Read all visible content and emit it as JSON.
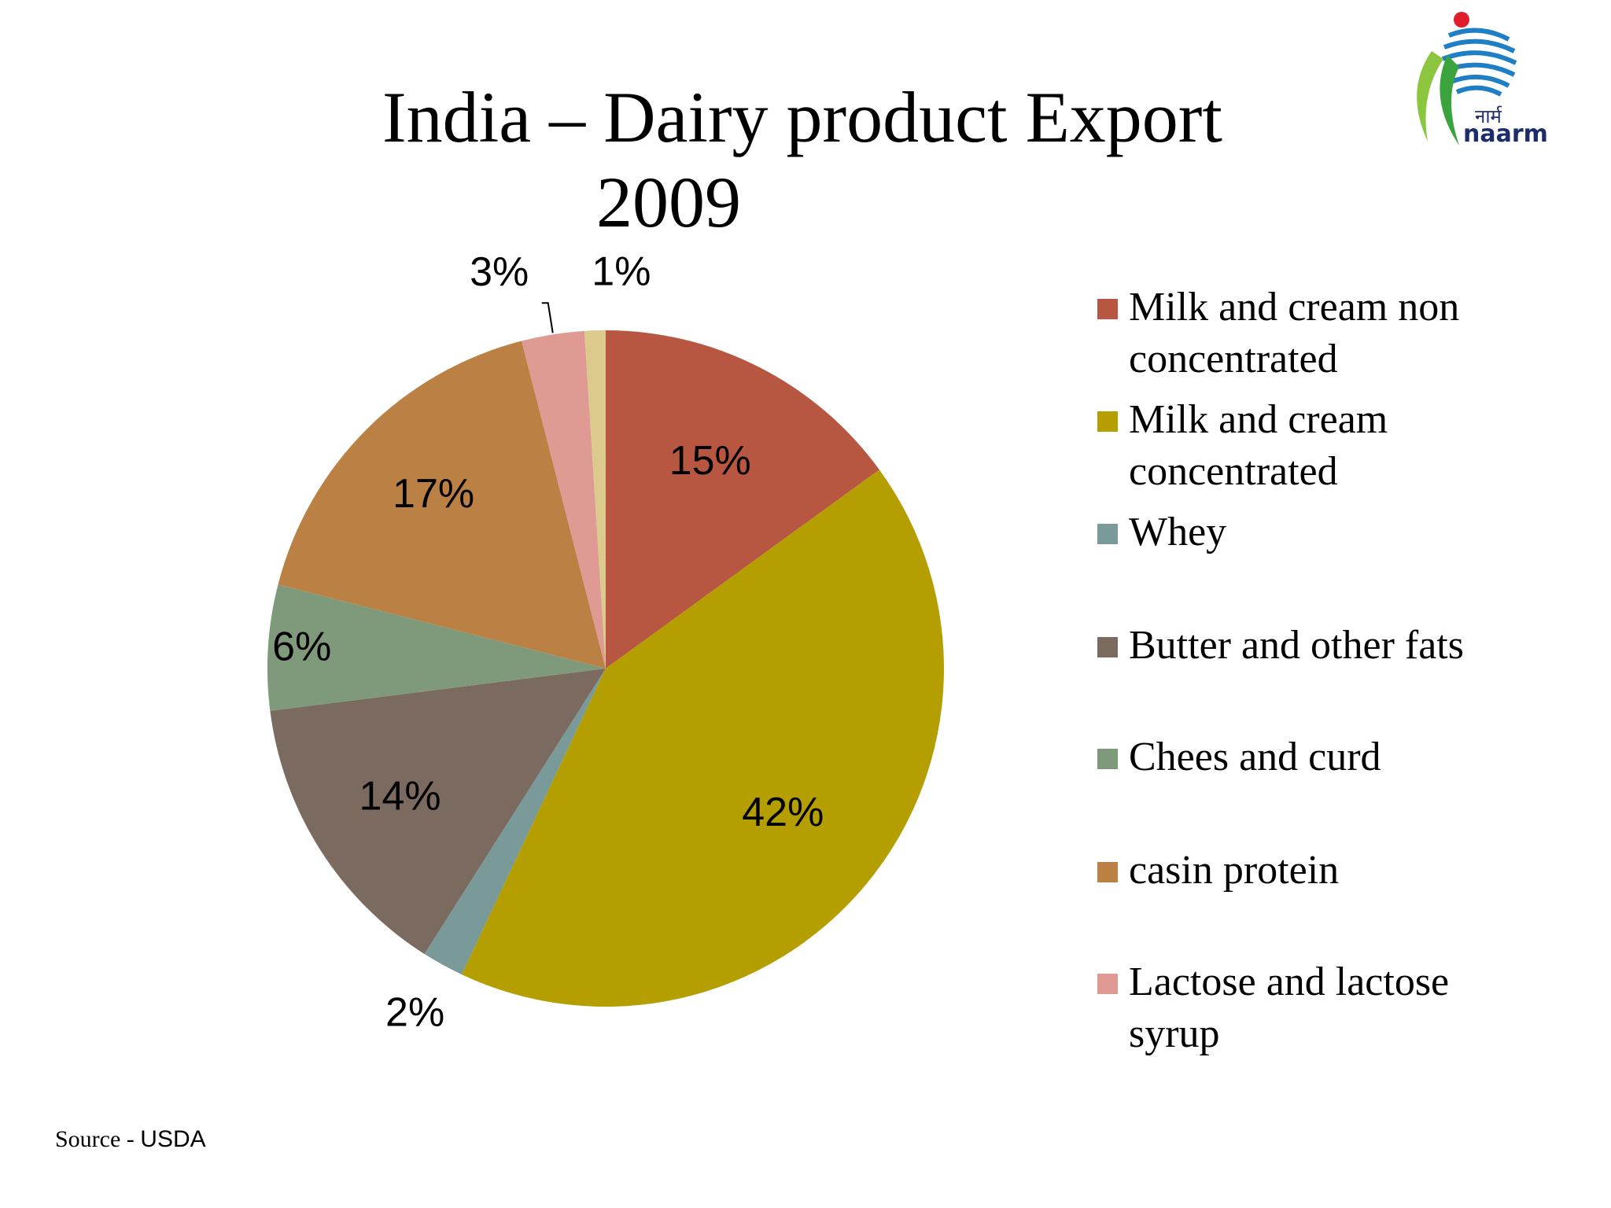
{
  "slide": {
    "title_line1": "India – Dairy product Export",
    "title_line2": "2009",
    "source_prefix": "Source - ",
    "source_org": "USDA"
  },
  "logo": {
    "text_hi": "नार्म",
    "text": "naarm"
  },
  "chart_data": {
    "type": "pie",
    "title": "India – Dairy product Export 2009",
    "slices": [
      {
        "name": "Milk and cream non concentrated",
        "value": 15,
        "label": "15%",
        "color": "#b85741"
      },
      {
        "name": "Milk and cream concentrated",
        "value": 42,
        "label": "42%",
        "color": "#b59e00"
      },
      {
        "name": "Whey",
        "value": 2,
        "label": "2%",
        "color": "#7a9999"
      },
      {
        "name": "Butter and other fats",
        "value": 14,
        "label": "14%",
        "color": "#7a6a60"
      },
      {
        "name": "Chees and curd",
        "value": 6,
        "label": "6%",
        "color": "#7f9a7b"
      },
      {
        "name": "casin protein",
        "value": 17,
        "label": "17%",
        "color": "#bb8044"
      },
      {
        "name": "Lactose and lactose syrup",
        "value": 3,
        "label": "3%",
        "color": "#df9b93"
      },
      {
        "name": "",
        "value": 1,
        "label": "1%",
        "color": "#dcc98c"
      }
    ],
    "legend_placement": "right"
  }
}
